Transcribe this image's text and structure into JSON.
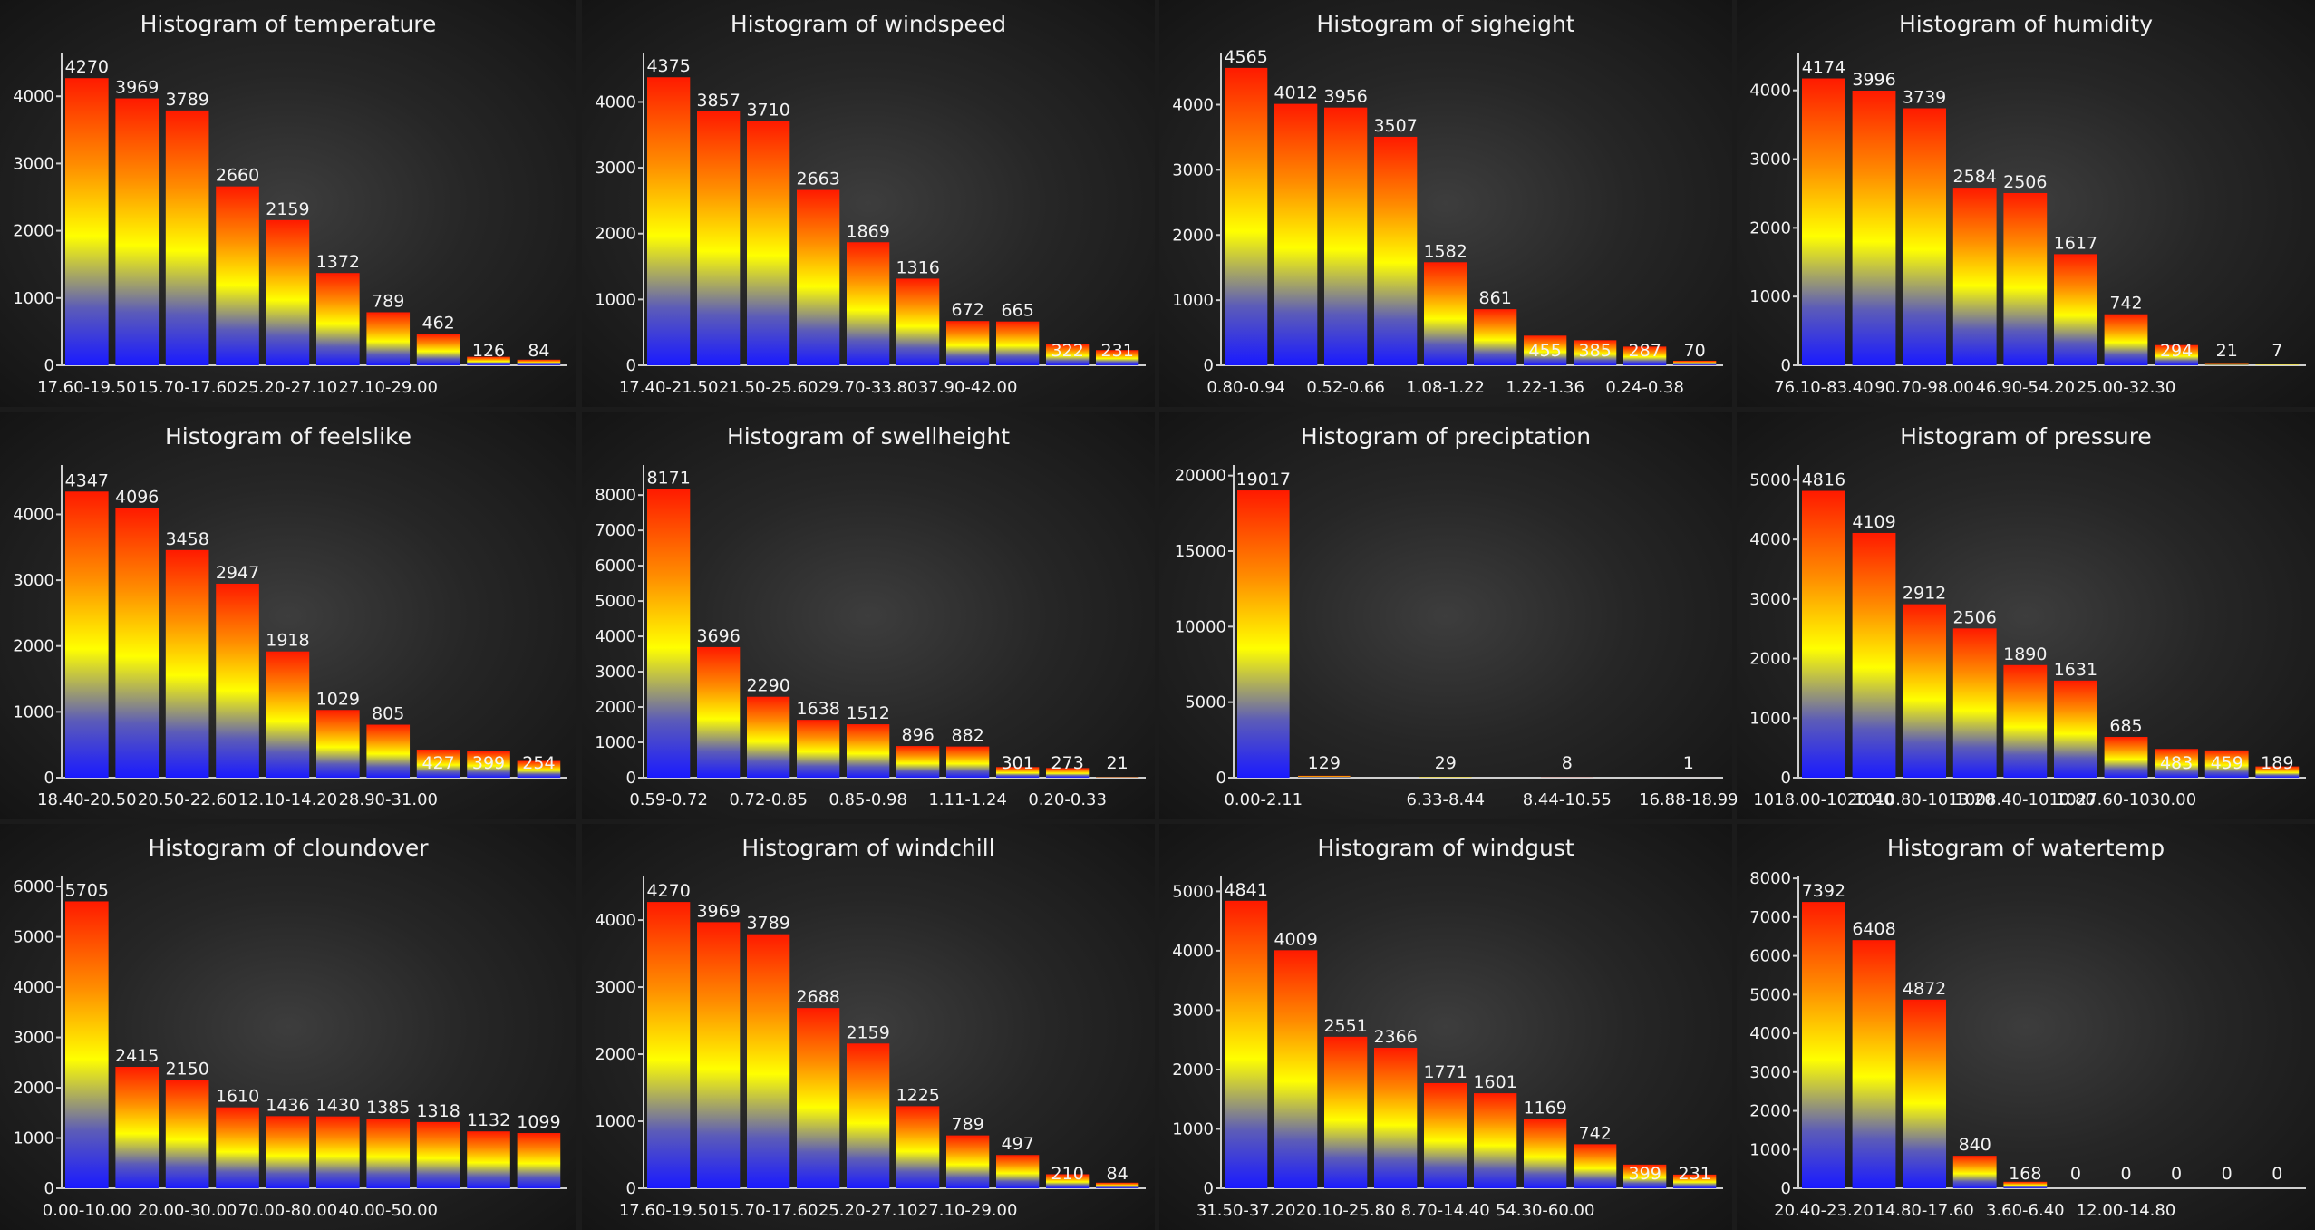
{
  "colors": {
    "bar_top": "#ff1a00",
    "bar_upper": "#ff8c00",
    "bar_mid": "#ffff00",
    "bar_low": "#5c5cb8",
    "bar_bottom": "#1a1aff",
    "text": "#f2f2f2",
    "axis": "#cfcfcf"
  },
  "chart_data": [
    {
      "type": "bar",
      "title": "Histogram of temperature",
      "ylim": [
        0,
        4650
      ],
      "yticks": [
        0,
        1000,
        2000,
        3000,
        4000
      ],
      "categories": [
        "17.60-19.50",
        "",
        "15.70-17.60",
        "",
        "25.20-27.10",
        "",
        "27.10-29.00",
        "",
        "",
        ""
      ],
      "values": [
        4270,
        3969,
        3789,
        2660,
        2159,
        1372,
        789,
        462,
        126,
        84
      ]
    },
    {
      "type": "bar",
      "title": "Histogram of windspeed",
      "ylim": [
        0,
        4750
      ],
      "yticks": [
        0,
        1000,
        2000,
        3000,
        4000
      ],
      "categories": [
        "17.40-21.50",
        "",
        "21.50-25.60",
        "",
        "29.70-33.80",
        "",
        "37.90-42.00",
        "",
        "",
        ""
      ],
      "values": [
        4375,
        3857,
        3710,
        2663,
        1869,
        1316,
        672,
        665,
        322,
        231
      ]
    },
    {
      "type": "bar",
      "title": "Histogram of sigheight",
      "ylim": [
        0,
        4800
      ],
      "yticks": [
        0,
        1000,
        2000,
        3000,
        4000
      ],
      "categories": [
        "0.80-0.94",
        "",
        "0.52-0.66",
        "",
        "1.08-1.22",
        "",
        "1.22-1.36",
        "",
        "0.24-0.38",
        ""
      ],
      "values": [
        4565,
        4012,
        3956,
        3507,
        1582,
        861,
        455,
        385,
        287,
        70
      ]
    },
    {
      "type": "bar",
      "title": "Histogram of humidity",
      "ylim": [
        0,
        4550
      ],
      "yticks": [
        0,
        1000,
        2000,
        3000,
        4000
      ],
      "categories": [
        "76.10-83.40",
        "",
        "90.70-98.00",
        "",
        "46.90-54.20",
        "",
        "25.00-32.30",
        "",
        "",
        ""
      ],
      "values": [
        4174,
        3996,
        3739,
        2584,
        2506,
        1617,
        742,
        294,
        21,
        7
      ]
    },
    {
      "type": "bar",
      "title": "Histogram of feelslike",
      "ylim": [
        0,
        4750
      ],
      "yticks": [
        0,
        1000,
        2000,
        3000,
        4000
      ],
      "categories": [
        "18.40-20.50",
        "",
        "20.50-22.60",
        "",
        "12.10-14.20",
        "",
        "28.90-31.00",
        "",
        "",
        ""
      ],
      "values": [
        4347,
        4096,
        3458,
        2947,
        1918,
        1029,
        805,
        427,
        399,
        254
      ]
    },
    {
      "type": "bar",
      "title": "Histogram of swellheight",
      "ylim": [
        0,
        8850
      ],
      "yticks": [
        0,
        1000,
        2000,
        3000,
        4000,
        5000,
        6000,
        7000,
        8000
      ],
      "categories": [
        "0.59-0.72",
        "",
        "0.72-0.85",
        "",
        "0.85-0.98",
        "",
        "1.11-1.24",
        "",
        "0.20-0.33",
        ""
      ],
      "values": [
        8171,
        3696,
        2290,
        1638,
        1512,
        896,
        882,
        301,
        273,
        21
      ]
    },
    {
      "type": "bar",
      "title": "Histogram of preciptation",
      "ylim": [
        0,
        20700
      ],
      "yticks": [
        0,
        5000,
        10000,
        15000,
        20000
      ],
      "categories": [
        "0.00-2.11",
        "",
        "",
        "6.33-8.44",
        "",
        "8.44-10.55",
        "",
        "16.88-18.99"
      ],
      "values": [
        19017,
        129,
        "",
        29,
        "",
        8,
        "",
        1
      ]
    },
    {
      "type": "bar",
      "title": "Histogram of pressure",
      "ylim": [
        0,
        5250
      ],
      "yticks": [
        0,
        1000,
        2000,
        3000,
        4000,
        5000
      ],
      "categories": [
        "1018.00-1020.40",
        "",
        "1010.80-1013.20",
        "",
        "1008.40-1010.80",
        "",
        "1027.60-1030.00",
        "",
        "",
        ""
      ],
      "values": [
        4816,
        4109,
        2912,
        2506,
        1890,
        1631,
        685,
        483,
        459,
        189
      ]
    },
    {
      "type": "bar",
      "title": "Histogram of cloundover",
      "ylim": [
        0,
        6200
      ],
      "yticks": [
        0,
        1000,
        2000,
        3000,
        4000,
        5000,
        6000
      ],
      "categories": [
        "0.00-10.00",
        "",
        "20.00-30.00",
        "",
        "70.00-80.00",
        "",
        "40.00-50.00",
        "",
        "",
        ""
      ],
      "values": [
        5705,
        2415,
        2150,
        1610,
        1436,
        1430,
        1385,
        1318,
        1132,
        1099
      ]
    },
    {
      "type": "bar",
      "title": "Histogram of windchill",
      "ylim": [
        0,
        4650
      ],
      "yticks": [
        0,
        1000,
        2000,
        3000,
        4000
      ],
      "categories": [
        "17.60-19.50",
        "",
        "15.70-17.60",
        "",
        "25.20-27.10",
        "",
        "27.10-29.00",
        "",
        "",
        ""
      ],
      "values": [
        4270,
        3969,
        3789,
        2688,
        2159,
        1225,
        789,
        497,
        210,
        84
      ]
    },
    {
      "type": "bar",
      "title": "Histogram of windgust",
      "ylim": [
        0,
        5250
      ],
      "yticks": [
        0,
        1000,
        2000,
        3000,
        4000,
        5000
      ],
      "categories": [
        "31.50-37.20",
        "",
        "20.10-25.80",
        "",
        "8.70-14.40",
        "",
        "54.30-60.00",
        "",
        "",
        ""
      ],
      "values": [
        4841,
        4009,
        2551,
        2366,
        1771,
        1601,
        1169,
        742,
        399,
        231
      ]
    },
    {
      "type": "bar",
      "title": "Histogram of watertemp",
      "ylim": [
        0,
        8050
      ],
      "yticks": [
        0,
        1000,
        2000,
        3000,
        4000,
        5000,
        6000,
        7000,
        8000
      ],
      "categories": [
        "20.40-23.20",
        "",
        "14.80-17.60",
        "",
        "3.60-6.40",
        "",
        "12.00-14.80",
        "",
        "",
        ""
      ],
      "values": [
        7392,
        6408,
        4872,
        840,
        168,
        0,
        0,
        0,
        0,
        0
      ]
    }
  ]
}
